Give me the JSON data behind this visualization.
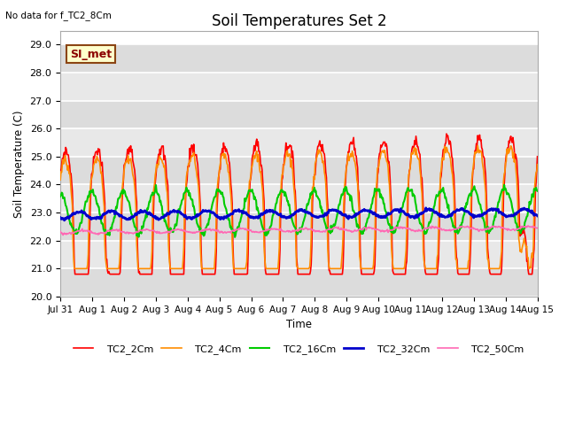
{
  "title": "Soil Temperatures Set 2",
  "subtitle": "No data for f_TC2_8Cm",
  "ylabel": "Soil Temperature (C)",
  "xlabel": "Time",
  "ylim": [
    20.0,
    29.5
  ],
  "yticks": [
    20.0,
    21.0,
    22.0,
    23.0,
    24.0,
    25.0,
    26.0,
    27.0,
    28.0,
    29.0
  ],
  "xtick_labels": [
    "Jul 31",
    "Aug 1",
    "Aug 2",
    "Aug 3",
    "Aug 4",
    "Aug 5",
    "Aug 6",
    "Aug 7",
    "Aug 8",
    "Aug 9",
    "Aug 10",
    "Aug 11",
    "Aug 12",
    "Aug 13",
    "Aug 14",
    "Aug 15"
  ],
  "legend_labels": [
    "TC2_2Cm",
    "TC2_4Cm",
    "TC2_16Cm",
    "TC2_32Cm",
    "TC2_50Cm"
  ],
  "legend_colors": [
    "#FF0000",
    "#FF8C00",
    "#00CC00",
    "#0000CC",
    "#FF69B4"
  ],
  "line_widths": [
    1.2,
    1.2,
    1.5,
    2.0,
    1.2
  ],
  "annotation_text": "SI_met",
  "annotation_bbox_facecolor": "#FFFFCC",
  "annotation_bbox_edgecolor": "#8B4513",
  "band_colors": [
    "#DCDCDC",
    "#E8E8E8"
  ],
  "bg_color": "#FFFFFF",
  "n_days": 15
}
